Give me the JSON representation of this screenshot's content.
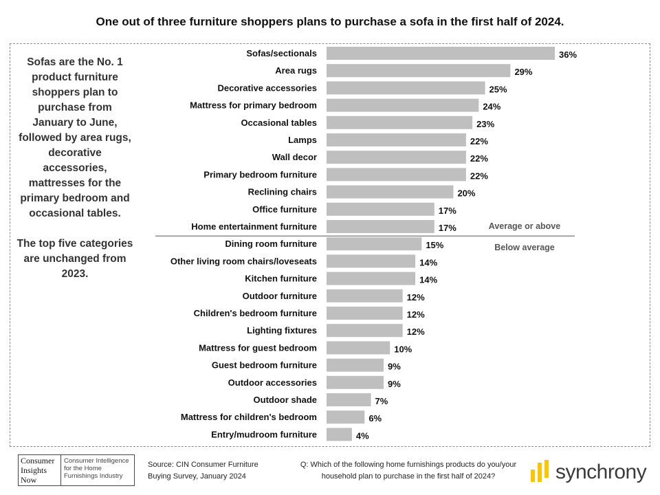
{
  "title": "One out of three furniture shoppers plans to purchase a sofa in the first half of 2024.",
  "side_text": {
    "para1": "Sofas are the No. 1 product furniture shoppers plan to purchase from January to June, followed by area rugs, decorative accessories, mattresses for the primary bedroom and occasional tables.",
    "para2": "The top five categories are unchanged from 2023."
  },
  "chart_data": {
    "type": "bar",
    "orientation": "horizontal",
    "categories": [
      "Sofas/sectionals",
      "Area rugs",
      "Decorative accessories",
      "Mattress for primary bedroom",
      "Occasional tables",
      "Lamps",
      "Wall decor",
      "Primary bedroom furniture",
      "Reclining chairs",
      "Office furniture",
      "Home entertainment furniture",
      "Dining room furniture",
      "Other living room chairs/loveseats",
      "Kitchen furniture",
      "Outdoor furniture",
      "Children's bedroom furniture",
      "Lighting fixtures",
      "Mattress for guest bedroom",
      "Guest bedroom furniture",
      "Outdoor accessories",
      "Outdoor shade",
      "Mattress for children's bedroom",
      "Entry/mudroom furniture"
    ],
    "values": [
      36,
      29,
      25,
      24,
      23,
      22,
      22,
      22,
      20,
      17,
      17,
      15,
      14,
      14,
      12,
      12,
      12,
      10,
      9,
      9,
      7,
      6,
      4
    ],
    "value_suffix": "%",
    "bar_color": "#bfbfbf",
    "xlim": [
      0,
      36
    ],
    "divider_after_index": 10,
    "annotations": {
      "above": "Average or above",
      "below": "Below average"
    }
  },
  "footer": {
    "logo_left": "Consumer Insights Now",
    "logo_right": "Consumer Intelligence for the Home Furnishings Industry",
    "source": "Source: CIN Consumer Furniture Buying Survey, January 2024",
    "question": "Q: Which of the following home furnishings products do you/your household plan to purchase in the first half of 2024?",
    "brand": "synchrony",
    "brand_color": "#fbc600"
  }
}
